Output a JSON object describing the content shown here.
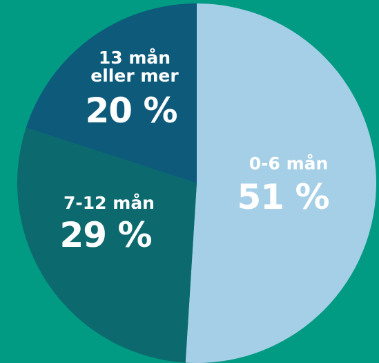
{
  "chart_data": {
    "type": "pie",
    "categories": [
      "0-6 mån",
      "7-12 mån",
      "13 mån eller mer"
    ],
    "values": [
      51,
      29,
      20
    ],
    "value_labels": [
      "51 %",
      "29 %",
      "20 %"
    ],
    "colors": [
      "#a5cfe6",
      "#0c6a6e",
      "#0d5a7a"
    ]
  }
}
